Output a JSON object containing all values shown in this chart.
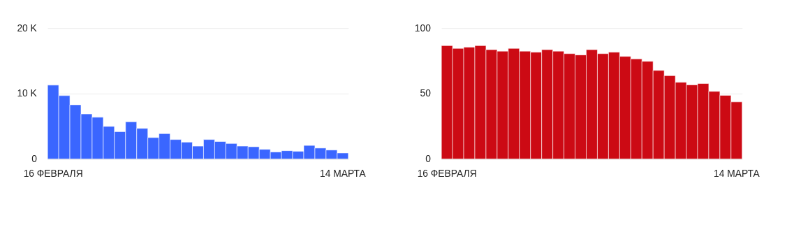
{
  "chart_data": [
    {
      "type": "bar",
      "categories": [
        "16 ФЕВРАЛЯ",
        null,
        null,
        null,
        null,
        null,
        null,
        null,
        null,
        null,
        null,
        null,
        null,
        null,
        null,
        null,
        null,
        null,
        null,
        null,
        null,
        null,
        null,
        null,
        null,
        null,
        "14 МАРТА"
      ],
      "series": [
        {
          "color": "#3a66ff",
          "values": [
            11300,
            9700,
            8300,
            6900,
            6400,
            5000,
            4200,
            5700,
            4700,
            3300,
            3900,
            3000,
            2600,
            2000,
            3000,
            2700,
            2400,
            2000,
            1900,
            1500,
            1100,
            1300,
            1200,
            2100,
            1700,
            1400,
            950
          ]
        }
      ],
      "ylim": [
        0,
        20000
      ],
      "yticks": [
        0,
        {
          "value": 10000,
          "label": "10 K"
        },
        {
          "value": 20000,
          "label": "20 K"
        }
      ],
      "grid": "y"
    },
    {
      "type": "bar",
      "categories": [
        "16 ФЕВРАЛЯ",
        null,
        null,
        null,
        null,
        null,
        null,
        null,
        null,
        null,
        null,
        null,
        null,
        null,
        null,
        null,
        null,
        null,
        null,
        null,
        null,
        null,
        null,
        null,
        null,
        null,
        "14 МАРТА"
      ],
      "series": [
        {
          "color": "#cc0a14",
          "values": [
            86.6,
            84.5,
            85.4,
            86.6,
            83.5,
            82.4,
            84.5,
            82.4,
            81.6,
            83.5,
            82.4,
            80.5,
            79.5,
            83.5,
            80.5,
            81.6,
            78.4,
            76.5,
            74.6,
            67.7,
            63.7,
            58.6,
            56.7,
            57.7,
            51.7,
            48.7,
            43.7
          ]
        }
      ],
      "ylim": [
        0,
        100
      ],
      "yticks": [
        0,
        50,
        100
      ],
      "grid": "y"
    }
  ]
}
